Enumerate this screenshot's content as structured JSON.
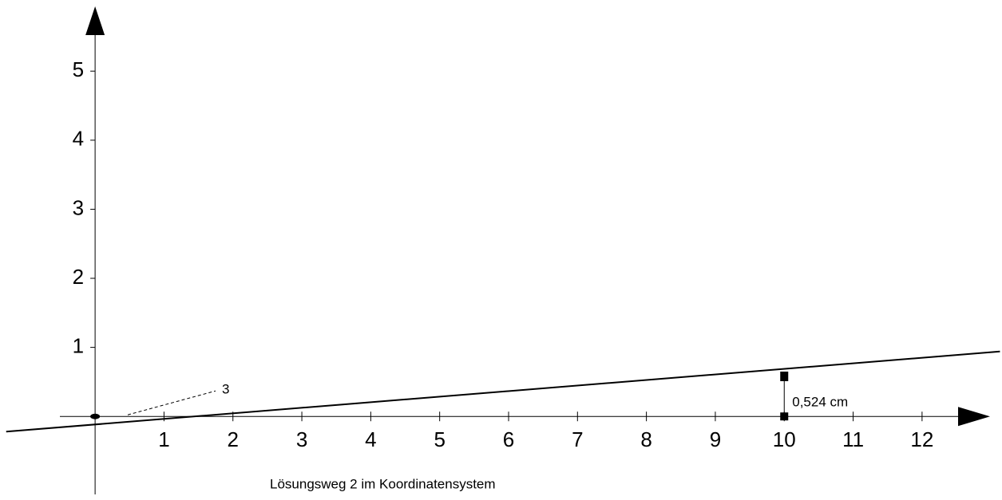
{
  "chart_data": {
    "type": "line",
    "title": "Lösungsweg 2 im Koordinatensystem",
    "x": [
      -1.29,
      13.13
    ],
    "values": [
      -0.22,
      0.94
    ],
    "xlim": [
      -1.38,
      13.16
    ],
    "ylim": [
      -1.21,
      6.03
    ],
    "xticks": [
      1,
      2,
      3,
      4,
      5,
      6,
      7,
      8,
      9,
      10,
      11,
      12
    ],
    "yticks": [
      1,
      2,
      3,
      4,
      5
    ],
    "measure": {
      "x": 10,
      "y": 0.58,
      "label": "0,524 cm"
    },
    "angle_label": "3",
    "color": "#000000"
  }
}
